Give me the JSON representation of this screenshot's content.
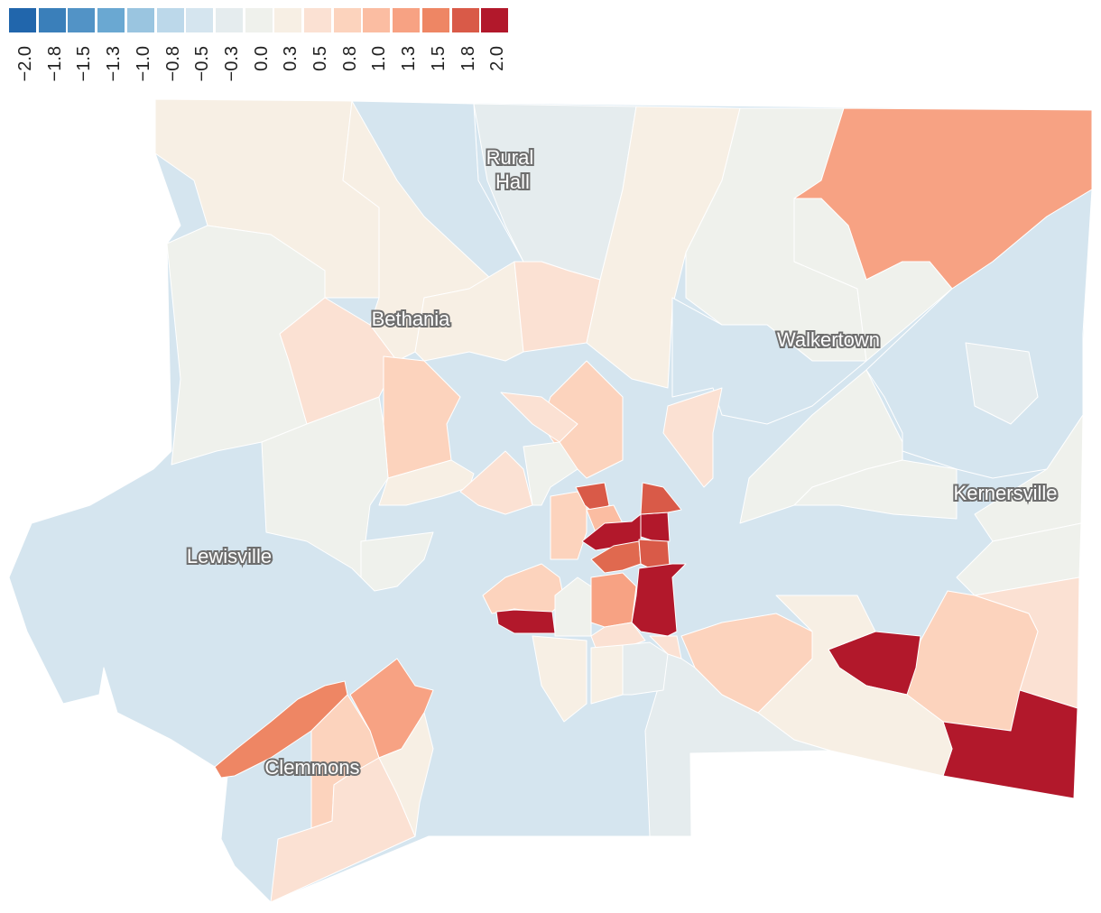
{
  "legend": {
    "ticks": [
      "−2.0",
      "−1.8",
      "−1.5",
      "−1.3",
      "−1.0",
      "−0.8",
      "−0.5",
      "−0.3",
      "0.0",
      "0.3",
      "0.5",
      "0.8",
      "1.0",
      "1.3",
      "1.5",
      "1.8",
      "2.0"
    ],
    "colors": [
      "#2166ac",
      "#3a7fba",
      "#5293c6",
      "#6aa8d2",
      "#9ac5e0",
      "#bcd8ea",
      "#d5e5ef",
      "#e5ecee",
      "#eff1ec",
      "#f7efe4",
      "#fbe1d3",
      "#fcd3bd",
      "#fbbda2",
      "#f7a283",
      "#ee8664",
      "#d95a48",
      "#b2182b"
    ]
  },
  "places": [
    {
      "name": "Rural",
      "line2": "Hall"
    },
    {
      "name": "Bethania"
    },
    {
      "name": "Walkertown"
    },
    {
      "name": "Kernersville"
    },
    {
      "name": "Lewisville"
    },
    {
      "name": "Clemmons"
    }
  ]
}
